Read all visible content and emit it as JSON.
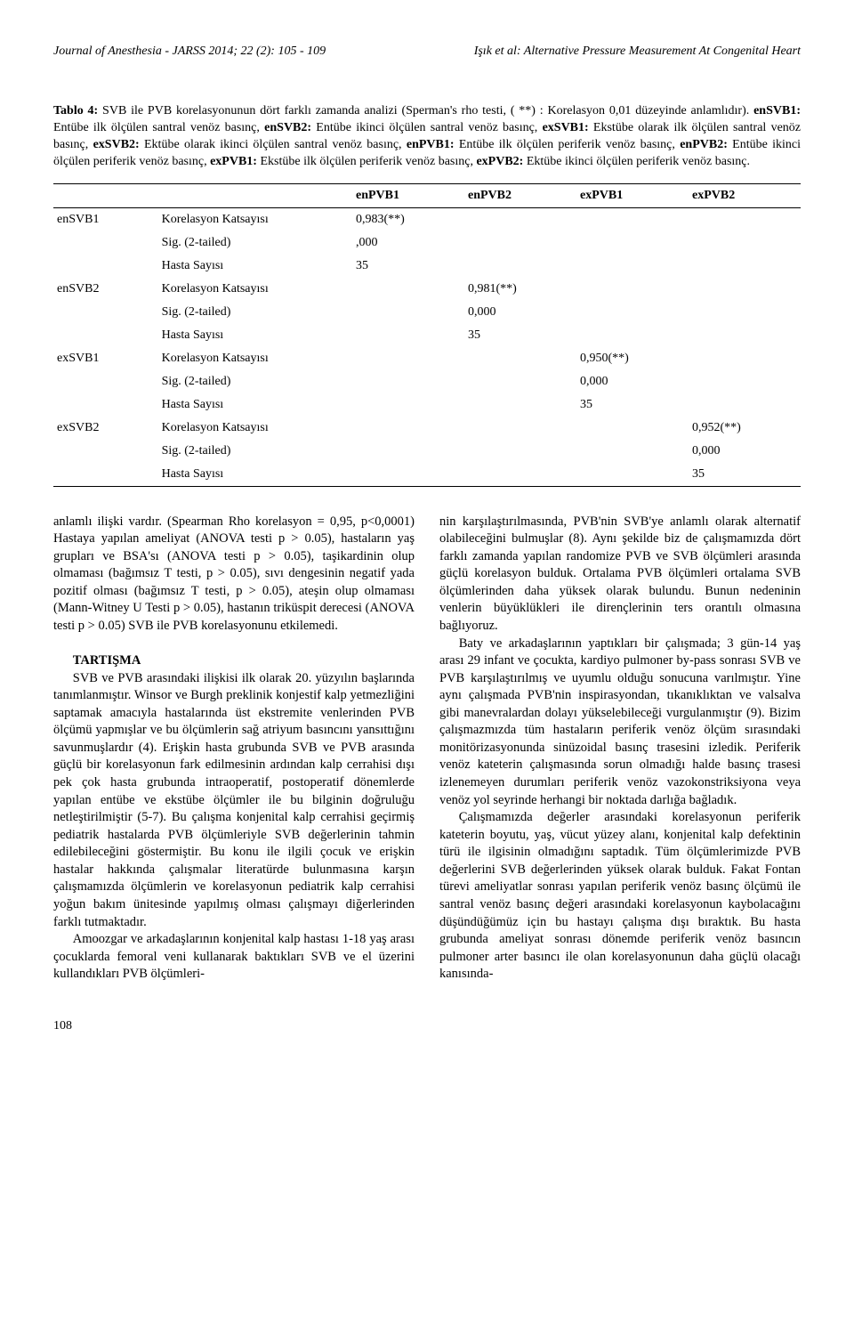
{
  "header": {
    "left": "Journal of Anesthesia - JARSS 2014; 22 (2): 105 - 109",
    "right": "Işık et al: Alternative Pressure Measurement At Congenital Heart"
  },
  "caption": {
    "b1": "Tablo 4:",
    "t1": " SVB ile PVB korelasyonunun dört farklı zamanda analizi (Sperman's rho testi, ( **) : Korelasyon 0,01 düzeyinde anlamlıdır). ",
    "b2": "enSVB1:",
    "t2": " Entübe ilk ölçülen santral venöz basınç, ",
    "b3": "enSVB2:",
    "t3": " Entübe ikinci ölçülen santral venöz basınç, ",
    "b4": "exSVB1:",
    "t4": " Ekstübe olarak  ilk ölçülen santral venöz basınç, ",
    "b5": "exSVB2:",
    "t5": " Ektübe olarak  ikinci ölçülen santral venöz basınç, ",
    "b6": "enPVB1:",
    "t6": " Entübe ilk ölçülen periferik  venöz basınç, ",
    "b7": "enPVB2:",
    "t7": " Entübe ikinci ölçülen periferik venöz basınç, ",
    "b8": "exPVB1:",
    "t8": " Ekstübe ilk ölçülen periferik venöz basınç, ",
    "b9": "exPVB2:",
    "t9": " Ektübe ikinci ölçülen periferik venöz basınç."
  },
  "table": {
    "col_headers": [
      "",
      "",
      "enPVB1",
      "enPVB2",
      "exPVB1",
      "exPVB2"
    ],
    "groups": [
      {
        "label": "enSVB1",
        "rows": [
          {
            "name": "Korelasyon Katsayısı",
            "vals": [
              "0,983(**)",
              "",
              "",
              ""
            ]
          },
          {
            "name": "Sig. (2-tailed)",
            "vals": [
              ",000",
              "",
              "",
              ""
            ]
          },
          {
            "name": "Hasta Sayısı",
            "vals": [
              "35",
              "",
              "",
              ""
            ]
          }
        ]
      },
      {
        "label": "enSVB2",
        "rows": [
          {
            "name": "Korelasyon Katsayısı",
            "vals": [
              "",
              "0,981(**)",
              "",
              ""
            ]
          },
          {
            "name": "Sig. (2-tailed)",
            "vals": [
              "",
              "0,000",
              "",
              ""
            ]
          },
          {
            "name": "Hasta Sayısı",
            "vals": [
              "",
              "35",
              "",
              ""
            ]
          }
        ]
      },
      {
        "label": "exSVB1",
        "rows": [
          {
            "name": "Korelasyon Katsayısı",
            "vals": [
              "",
              "",
              "0,950(**)",
              ""
            ]
          },
          {
            "name": "Sig. (2-tailed)",
            "vals": [
              "",
              "",
              "0,000",
              ""
            ]
          },
          {
            "name": "Hasta Sayısı",
            "vals": [
              "",
              "",
              "35",
              ""
            ]
          }
        ]
      },
      {
        "label": "exSVB2",
        "rows": [
          {
            "name": "Korelasyon Katsayısı",
            "vals": [
              "",
              "",
              "",
              "0,952(**)"
            ]
          },
          {
            "name": "Sig. (2-tailed)",
            "vals": [
              "",
              "",
              "",
              "0,000"
            ]
          },
          {
            "name": "Hasta Sayısı",
            "vals": [
              "",
              "",
              "",
              "35"
            ]
          }
        ]
      }
    ]
  },
  "body": {
    "p1": "anlamlı ilişki vardır. (Spearman Rho korelasyon = 0,95, p<0,0001) Hastaya  yapılan  ameliyat  (ANOVA testi p > 0.05), hastaların yaş grupları ve BSA'sı (ANOVA testi p > 0.05), taşikardinin olup olmaması (bağımsız T testi, p > 0.05), sıvı dengesinin negatif yada pozitif olması (bağımsız T testi, p > 0.05),  ateşin olup olmaması (Mann-Witney U Testi p > 0.05), hastanın triküspit derecesi (ANOVA testi p > 0.05)  SVB ile PVB korelasyonunu etkilemedi.",
    "h1": "TARTIŞMA",
    "p2": "SVB ve PVB arasındaki ilişkisi ilk olarak 20. yüzyılın başlarında tanımlanmıştır. Winsor ve Burgh preklinik konjestif kalp yetmezliğini saptamak amacıyla hastalarında üst ekstremite venlerinden PVB ölçümü yapmışlar ve bu ölçümlerin sağ atriyum basıncını yansıttığını savunmuşlardır (4). Erişkin hasta grubunda SVB ve PVB arasında güçlü bir korelasyonun fark edilmesinin ardından kalp cerrahisi dışı pek çok hasta grubunda intraoperatif, postoperatif dönemlerde yapılan entübe ve ekstübe ölçümler ile bu bilginin doğruluğu netleştirilmiştir (5-7). Bu çalışma konjenital kalp cerrahisi geçirmiş pediatrik hastalarda PVB ölçümleriyle SVB değerlerinin tahmin edilebileceğini göstermiştir. Bu konu ile ilgili çocuk ve erişkin hastalar hakkında çalışmalar literatürde bulunmasına karşın çalışmamızda ölçümlerin ve korelasyonun pediatrik kalp cerrahisi yoğun bakım ünitesinde yapılmış olması çalışmayı diğerlerinden farklı tutmaktadır.",
    "p3": "Amoozgar ve arkadaşlarının konjenital kalp hastası 1-18 yaş arası çocuklarda femoral veni kullanarak baktıkları SVB ve el üzerini kullandıkları PVB ölçümleri-",
    "p4": "nin karşılaştırılmasında, PVB'nin SVB'ye anlamlı olarak alternatif olabileceğini bulmuşlar (8). Aynı şekilde biz de çalışmamızda dört farklı zamanda yapılan randomize PVB ve SVB ölçümleri arasında güçlü korelasyon bulduk. Ortalama PVB ölçümleri ortalama SVB ölçümlerinden daha yüksek olarak bulundu. Bunun nedeninin venlerin büyüklükleri ile dirençlerinin ters orantılı olmasına bağlıyoruz.",
    "p5": "Baty ve arkadaşlarının yaptıkları bir çalışmada; 3 gün-14 yaş arası 29 infant ve çocukta, kardiyo pulmoner by-pass sonrası SVB ve PVB karşılaştırılmış ve uyumlu olduğu sonucuna varılmıştır. Yine aynı çalışmada PVB'nin inspirasyondan, tıkanıklıktan ve valsalva gibi manevralardan dolayı yükselebileceği vurgulanmıştır (9). Bizim çalışmazmızda tüm hastaların periferik venöz ölçüm sırasındaki monitörizasyonunda sinüzoidal basınç trasesini izledik. Periferik venöz kateterin çalışmasında sorun olmadığı halde basınç trasesi izlenemeyen durumları periferik venöz vazokonstriksiyona veya venöz yol seyrinde herhangi bir noktada darlığa bağladık.",
    "p6": "Çalışmamızda değerler arasındaki korelasyonun periferik kateterin boyutu, yaş, vücut yüzey alanı, konjenital kalp defektinin türü ile ilgisinin olmadığını saptadık. Tüm ölçümlerimizde PVB değerlerini SVB değerlerinden yüksek olarak bulduk. Fakat Fontan türevi ameliyatlar sonrası yapılan periferik venöz basınç ölçümü ile santral venöz basınç değeri arasındaki korelasyonun kaybolacağını düşündüğümüz için bu hastayı çalışma dışı bıraktık. Bu hasta grubunda ameliyat sonrası dönemde periferik venöz basıncın pulmoner arter basıncı ile olan korelasyonunun daha güçlü olacağı kanısında-"
  },
  "page_num": "108"
}
